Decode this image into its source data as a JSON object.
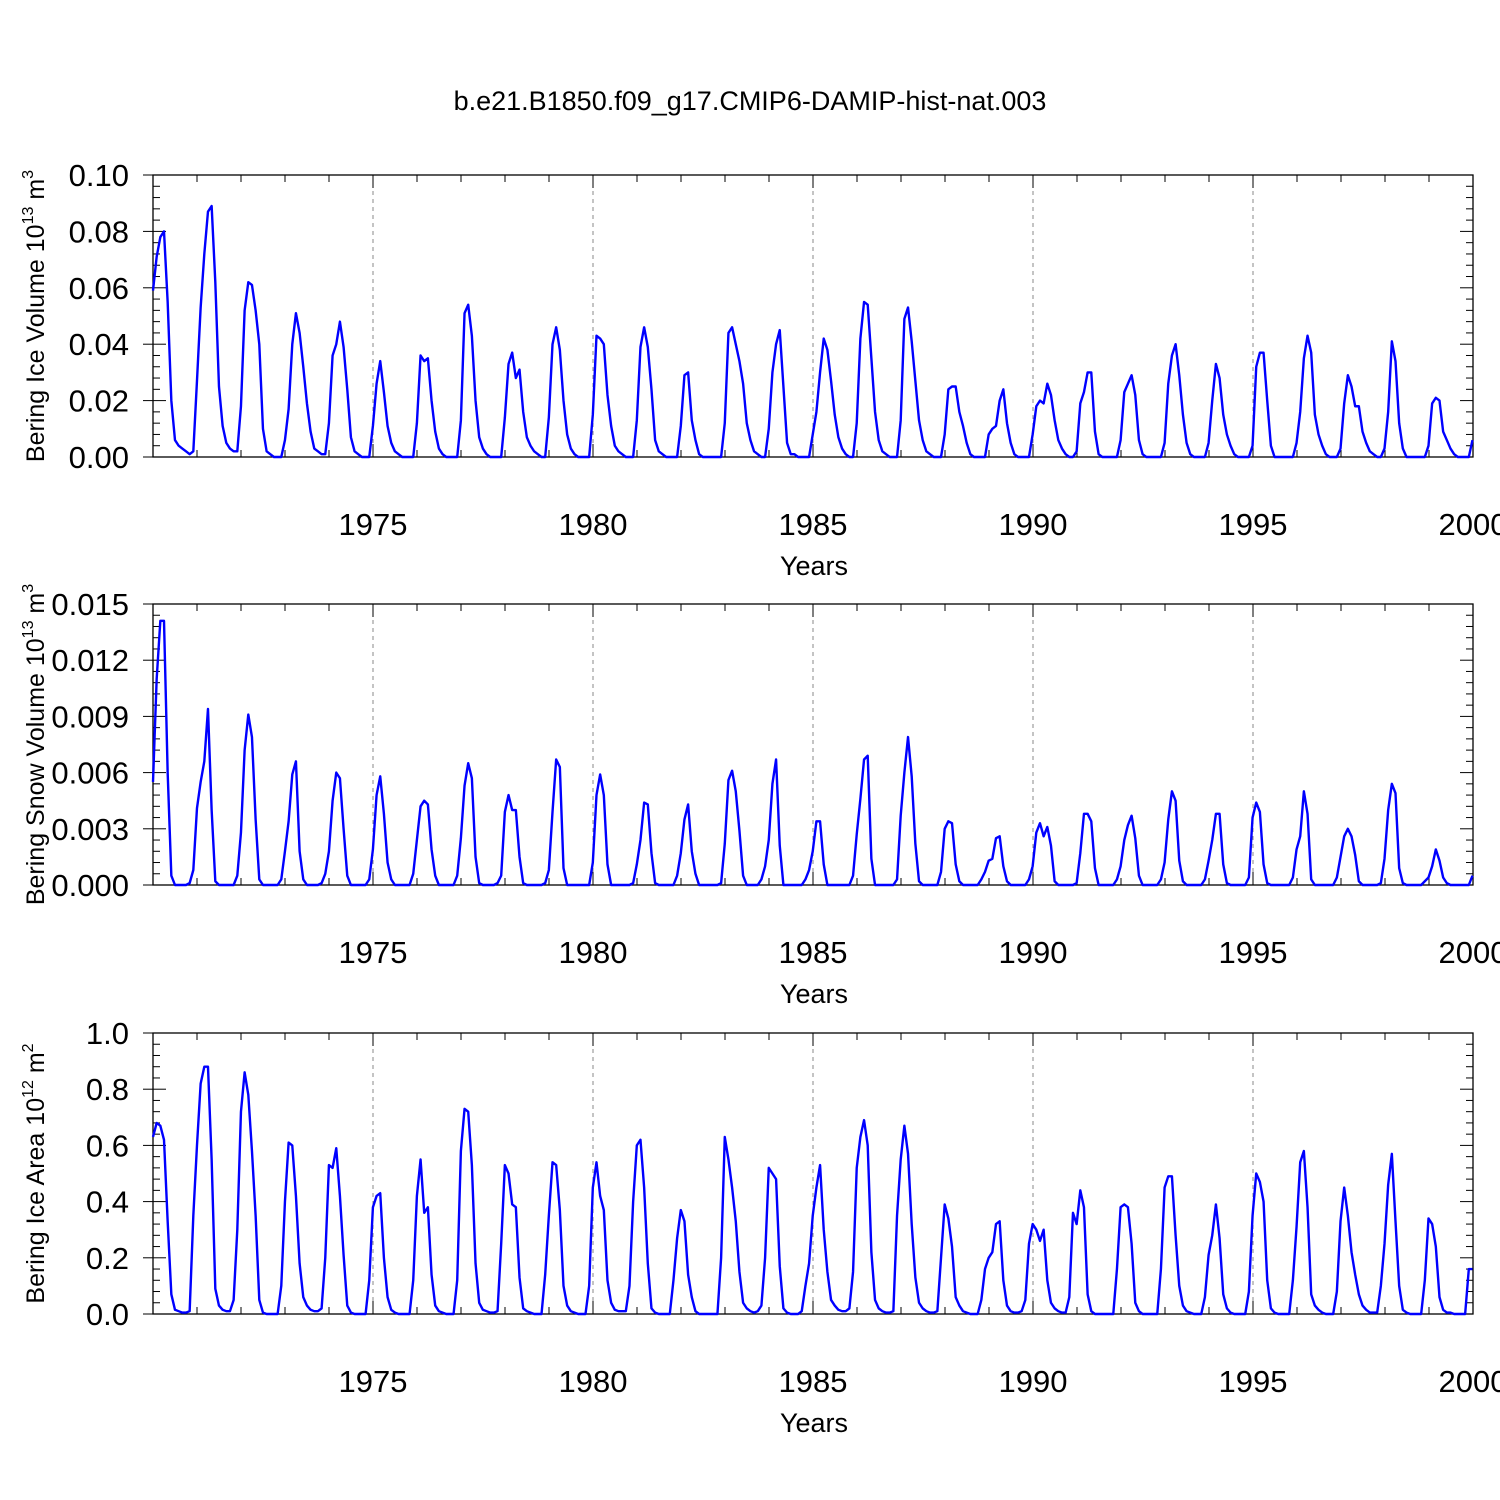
{
  "title": "b.e21.B1850.f09_g17.CMIP6-DAMIP-hist-nat.003",
  "colors": {
    "line": "#0000ff",
    "axis": "#000000",
    "grid": "#888888",
    "background": "#ffffff"
  },
  "chart_data": [
    {
      "type": "line",
      "name": "ice-volume",
      "ylabel": {
        "main": "Bering Ice Volume 10",
        "sup": "13",
        "unit": " m",
        "unit_sup": "3"
      },
      "xlabel": "Years",
      "xlim": [
        1970.0,
        2000.0
      ],
      "ylim": [
        0.0,
        0.1
      ],
      "xticks": [
        1975,
        1980,
        1985,
        1990,
        1995,
        2000
      ],
      "xtick_labels": [
        "1975",
        "1980",
        "1985",
        "1990",
        "1995",
        "2000"
      ],
      "yticks": [
        0.0,
        0.02,
        0.04,
        0.06,
        0.08,
        0.1
      ],
      "ytick_labels": [
        "0.00",
        "0.02",
        "0.04",
        "0.06",
        "0.08",
        "0.10"
      ],
      "x_start": 1970.0,
      "x_step": 0.0833,
      "values": [
        0.059,
        0.071,
        0.078,
        0.08,
        0.055,
        0.02,
        0.006,
        0.004,
        0.003,
        0.002,
        0.001,
        0.002,
        0.027,
        0.053,
        0.072,
        0.087,
        0.089,
        0.062,
        0.025,
        0.011,
        0.005,
        0.003,
        0.002,
        0.002,
        0.018,
        0.052,
        0.062,
        0.061,
        0.052,
        0.04,
        0.01,
        0.002,
        0.001,
        0.0,
        0.0,
        0.0,
        0.006,
        0.017,
        0.04,
        0.051,
        0.044,
        0.032,
        0.019,
        0.009,
        0.003,
        0.002,
        0.001,
        0.001,
        0.012,
        0.036,
        0.04,
        0.048,
        0.039,
        0.024,
        0.007,
        0.002,
        0.001,
        0.0,
        0.0,
        0.0,
        0.011,
        0.026,
        0.034,
        0.023,
        0.011,
        0.005,
        0.002,
        0.001,
        0.0,
        0.0,
        0.0,
        0.0,
        0.012,
        0.036,
        0.034,
        0.035,
        0.02,
        0.009,
        0.003,
        0.001,
        0.0,
        0.0,
        0.0,
        0.0,
        0.013,
        0.051,
        0.054,
        0.043,
        0.02,
        0.007,
        0.003,
        0.001,
        0.0,
        0.0,
        0.0,
        0.0,
        0.014,
        0.033,
        0.037,
        0.028,
        0.031,
        0.016,
        0.007,
        0.004,
        0.002,
        0.001,
        0.0,
        0.0,
        0.014,
        0.04,
        0.046,
        0.038,
        0.02,
        0.008,
        0.003,
        0.001,
        0.0,
        0.0,
        0.0,
        0.0,
        0.015,
        0.043,
        0.042,
        0.04,
        0.022,
        0.011,
        0.004,
        0.002,
        0.001,
        0.0,
        0.0,
        0.0,
        0.013,
        0.039,
        0.046,
        0.039,
        0.024,
        0.006,
        0.002,
        0.001,
        0.0,
        0.0,
        0.0,
        0.0,
        0.011,
        0.029,
        0.03,
        0.013,
        0.006,
        0.001,
        0.0,
        0.0,
        0.0,
        0.0,
        0.0,
        0.0,
        0.012,
        0.044,
        0.046,
        0.04,
        0.034,
        0.026,
        0.012,
        0.006,
        0.002,
        0.001,
        0.0,
        0.0,
        0.01,
        0.03,
        0.04,
        0.045,
        0.025,
        0.005,
        0.001,
        0.001,
        0.0,
        0.0,
        0.0,
        0.0,
        0.008,
        0.016,
        0.03,
        0.042,
        0.038,
        0.027,
        0.015,
        0.007,
        0.003,
        0.001,
        0.0,
        0.0,
        0.012,
        0.042,
        0.055,
        0.054,
        0.035,
        0.016,
        0.006,
        0.002,
        0.001,
        0.0,
        0.0,
        0.0,
        0.013,
        0.049,
        0.053,
        0.041,
        0.027,
        0.013,
        0.006,
        0.002,
        0.001,
        0.0,
        0.0,
        0.0,
        0.008,
        0.024,
        0.025,
        0.025,
        0.016,
        0.011,
        0.005,
        0.001,
        0.0,
        0.0,
        0.0,
        0.0,
        0.008,
        0.01,
        0.011,
        0.02,
        0.024,
        0.012,
        0.005,
        0.001,
        0.0,
        0.0,
        0.0,
        0.0,
        0.008,
        0.018,
        0.02,
        0.019,
        0.026,
        0.022,
        0.013,
        0.006,
        0.003,
        0.001,
        0.0,
        0.0,
        0.002,
        0.019,
        0.023,
        0.03,
        0.03,
        0.009,
        0.001,
        0.0,
        0.0,
        0.0,
        0.0,
        0.0,
        0.006,
        0.023,
        0.026,
        0.029,
        0.022,
        0.006,
        0.001,
        0.0,
        0.0,
        0.0,
        0.0,
        0.0,
        0.005,
        0.026,
        0.036,
        0.04,
        0.029,
        0.015,
        0.005,
        0.001,
        0.0,
        0.0,
        0.0,
        0.0,
        0.005,
        0.02,
        0.033,
        0.028,
        0.015,
        0.008,
        0.004,
        0.001,
        0.0,
        0.0,
        0.0,
        0.0,
        0.004,
        0.032,
        0.037,
        0.037,
        0.02,
        0.004,
        0.0,
        0.0,
        0.0,
        0.0,
        0.0,
        0.0,
        0.005,
        0.016,
        0.035,
        0.043,
        0.037,
        0.015,
        0.008,
        0.004,
        0.001,
        0.0,
        0.0,
        0.0,
        0.003,
        0.019,
        0.029,
        0.025,
        0.018,
        0.018,
        0.009,
        0.005,
        0.002,
        0.001,
        0.0,
        0.0,
        0.003,
        0.016,
        0.041,
        0.034,
        0.012,
        0.003,
        0.0,
        0.0,
        0.0,
        0.0,
        0.0,
        0.0,
        0.004,
        0.019,
        0.021,
        0.02,
        0.009,
        0.006,
        0.003,
        0.001,
        0.0,
        0.0,
        0.0,
        0.0,
        0.006
      ]
    },
    {
      "type": "line",
      "name": "snow-volume",
      "ylabel": {
        "main": "Bering Snow Volume 10",
        "sup": "13",
        "unit": " m",
        "unit_sup": "3"
      },
      "xlabel": "Years",
      "xlim": [
        1970.0,
        2000.0
      ],
      "ylim": [
        0.0,
        0.015
      ],
      "xticks": [
        1975,
        1980,
        1985,
        1990,
        1995,
        2000
      ],
      "xtick_labels": [
        "1975",
        "1980",
        "1985",
        "1990",
        "1995",
        "2000"
      ],
      "yticks": [
        0.0,
        0.003,
        0.006,
        0.009,
        0.012,
        0.015
      ],
      "ytick_labels": [
        "0.000",
        "0.003",
        "0.006",
        "0.009",
        "0.012",
        "0.015"
      ],
      "x_start": 1970.0,
      "x_step": 0.0833,
      "values": [
        0.0055,
        0.011,
        0.0141,
        0.0141,
        0.006,
        0.0005,
        0.0,
        0.0,
        0.0,
        0.0,
        0.0001,
        0.0008,
        0.0041,
        0.0055,
        0.0066,
        0.0094,
        0.004,
        0.0002,
        0.0,
        0.0,
        0.0,
        0.0,
        0.0,
        0.0005,
        0.0028,
        0.0072,
        0.0091,
        0.0079,
        0.0035,
        0.0003,
        0.0,
        0.0,
        0.0,
        0.0,
        0.0,
        0.0003,
        0.0018,
        0.0034,
        0.0059,
        0.0066,
        0.0018,
        0.0003,
        0.0,
        0.0,
        0.0,
        0.0,
        0.0001,
        0.0006,
        0.0018,
        0.0045,
        0.006,
        0.0057,
        0.003,
        0.0005,
        0.0,
        0.0,
        0.0,
        0.0,
        0.0,
        0.0003,
        0.0019,
        0.0048,
        0.0058,
        0.0038,
        0.0012,
        0.0003,
        0.0,
        0.0,
        0.0,
        0.0,
        0.0,
        0.0006,
        0.0024,
        0.0042,
        0.0045,
        0.0043,
        0.0019,
        0.0005,
        0.0,
        0.0,
        0.0,
        0.0,
        0.0,
        0.0005,
        0.0025,
        0.0053,
        0.0065,
        0.0057,
        0.0015,
        0.0001,
        0.0,
        0.0,
        0.0,
        0.0,
        0.0001,
        0.0005,
        0.0039,
        0.0048,
        0.004,
        0.004,
        0.0015,
        0.0001,
        0.0,
        0.0,
        0.0,
        0.0,
        0.0,
        0.0001,
        0.0008,
        0.0039,
        0.0067,
        0.0063,
        0.0009,
        0.0,
        0.0,
        0.0,
        0.0,
        0.0,
        0.0,
        0.0,
        0.0012,
        0.0048,
        0.0059,
        0.0048,
        0.0011,
        0.0,
        0.0,
        0.0,
        0.0,
        0.0,
        0.0,
        0.0001,
        0.0011,
        0.0024,
        0.0044,
        0.0043,
        0.0017,
        0.0001,
        0.0,
        0.0,
        0.0,
        0.0,
        0.0,
        0.0005,
        0.0017,
        0.0035,
        0.0043,
        0.0018,
        0.0006,
        0.0,
        0.0,
        0.0,
        0.0,
        0.0,
        0.0,
        0.0001,
        0.0022,
        0.0056,
        0.0061,
        0.005,
        0.0029,
        0.0005,
        0.0,
        0.0,
        0.0,
        0.0,
        0.0003,
        0.001,
        0.0024,
        0.0054,
        0.0067,
        0.0021,
        0.0,
        0.0,
        0.0,
        0.0,
        0.0,
        0.0,
        0.0003,
        0.0008,
        0.0018,
        0.0034,
        0.0034,
        0.0011,
        0.0,
        0.0,
        0.0,
        0.0,
        0.0,
        0.0,
        0.0,
        0.0005,
        0.0027,
        0.0046,
        0.0067,
        0.0069,
        0.0014,
        0.0,
        0.0,
        0.0,
        0.0,
        0.0,
        0.0,
        0.0003,
        0.0037,
        0.006,
        0.0079,
        0.0058,
        0.0022,
        0.0002,
        0.0,
        0.0,
        0.0,
        0.0,
        0.0,
        0.0007,
        0.003,
        0.0034,
        0.0033,
        0.0011,
        0.0002,
        0.0,
        0.0,
        0.0,
        0.0,
        0.0,
        0.0003,
        0.0007,
        0.0013,
        0.0014,
        0.0025,
        0.0026,
        0.001,
        0.0002,
        0.0,
        0.0,
        0.0,
        0.0,
        0.0,
        0.0003,
        0.001,
        0.0028,
        0.0033,
        0.0026,
        0.0031,
        0.0021,
        0.0002,
        0.0,
        0.0,
        0.0,
        0.0,
        0.0,
        0.0001,
        0.0017,
        0.0038,
        0.0038,
        0.0034,
        0.0009,
        0.0,
        0.0,
        0.0,
        0.0,
        0.0,
        0.0003,
        0.001,
        0.0024,
        0.0032,
        0.0037,
        0.0025,
        0.0005,
        0.0,
        0.0,
        0.0,
        0.0,
        0.0,
        0.0003,
        0.0012,
        0.0035,
        0.005,
        0.0045,
        0.0013,
        0.0002,
        0.0,
        0.0,
        0.0,
        0.0,
        0.0,
        0.0003,
        0.0013,
        0.0024,
        0.0038,
        0.0038,
        0.0011,
        0.0001,
        0.0,
        0.0,
        0.0,
        0.0,
        0.0,
        0.0004,
        0.0036,
        0.0044,
        0.0039,
        0.0011,
        0.0001,
        0.0,
        0.0,
        0.0,
        0.0,
        0.0,
        0.0,
        0.0004,
        0.0019,
        0.0026,
        0.005,
        0.0038,
        0.0003,
        0.0,
        0.0,
        0.0,
        0.0,
        0.0,
        0.0,
        0.0004,
        0.0015,
        0.0026,
        0.003,
        0.0026,
        0.0016,
        0.0002,
        0.0,
        0.0,
        0.0,
        0.0,
        0.0,
        0.0001,
        0.0014,
        0.004,
        0.0054,
        0.0049,
        0.0009,
        0.0001,
        0.0,
        0.0,
        0.0,
        0.0,
        0.0,
        0.0002,
        0.0004,
        0.001,
        0.0019,
        0.0013,
        0.0004,
        0.0001,
        0.0,
        0.0,
        0.0,
        0.0,
        0.0,
        0.0,
        0.0005
      ]
    },
    {
      "type": "line",
      "name": "ice-area",
      "ylabel": {
        "main": "Bering Ice Area 10",
        "sup": "12",
        "unit": " m",
        "unit_sup": "2"
      },
      "xlabel": "Years",
      "xlim": [
        1970.0,
        2000.0
      ],
      "ylim": [
        0.0,
        1.0
      ],
      "xticks": [
        1975,
        1980,
        1985,
        1990,
        1995,
        2000
      ],
      "xtick_labels": [
        "1975",
        "1980",
        "1985",
        "1990",
        "1995",
        "2000"
      ],
      "yticks": [
        0.0,
        0.2,
        0.4,
        0.6,
        0.8,
        1.0
      ],
      "ytick_labels": [
        "0.0",
        "0.2",
        "0.4",
        "0.6",
        "0.8",
        "1.0"
      ],
      "x_start": 1970.0,
      "x_step": 0.0833,
      "values": [
        0.63,
        0.68,
        0.67,
        0.62,
        0.33,
        0.07,
        0.015,
        0.01,
        0.005,
        0.005,
        0.01,
        0.35,
        0.6,
        0.82,
        0.88,
        0.88,
        0.55,
        0.09,
        0.03,
        0.015,
        0.01,
        0.01,
        0.05,
        0.3,
        0.72,
        0.86,
        0.78,
        0.58,
        0.35,
        0.05,
        0.005,
        0.0,
        0.0,
        0.0,
        0.0,
        0.1,
        0.4,
        0.61,
        0.6,
        0.42,
        0.18,
        0.06,
        0.03,
        0.015,
        0.01,
        0.01,
        0.02,
        0.2,
        0.53,
        0.52,
        0.59,
        0.42,
        0.21,
        0.03,
        0.005,
        0.0,
        0.0,
        0.0,
        0.0,
        0.12,
        0.38,
        0.42,
        0.43,
        0.2,
        0.06,
        0.015,
        0.005,
        0.0,
        0.0,
        0.0,
        0.0,
        0.12,
        0.42,
        0.55,
        0.36,
        0.38,
        0.14,
        0.03,
        0.01,
        0.005,
        0.0,
        0.0,
        0.0,
        0.12,
        0.58,
        0.73,
        0.72,
        0.53,
        0.18,
        0.04,
        0.015,
        0.01,
        0.005,
        0.005,
        0.01,
        0.25,
        0.53,
        0.5,
        0.39,
        0.38,
        0.13,
        0.02,
        0.01,
        0.005,
        0.0,
        0.0,
        0.0,
        0.14,
        0.35,
        0.54,
        0.53,
        0.37,
        0.1,
        0.03,
        0.01,
        0.005,
        0.0,
        0.0,
        0.0,
        0.1,
        0.45,
        0.54,
        0.42,
        0.37,
        0.12,
        0.04,
        0.015,
        0.01,
        0.01,
        0.01,
        0.1,
        0.4,
        0.6,
        0.62,
        0.45,
        0.18,
        0.02,
        0.005,
        0.0,
        0.0,
        0.0,
        0.0,
        0.12,
        0.27,
        0.37,
        0.33,
        0.14,
        0.06,
        0.01,
        0.0,
        0.0,
        0.0,
        0.0,
        0.0,
        0.0,
        0.2,
        0.63,
        0.55,
        0.45,
        0.33,
        0.15,
        0.04,
        0.02,
        0.01,
        0.005,
        0.01,
        0.03,
        0.2,
        0.52,
        0.5,
        0.48,
        0.17,
        0.02,
        0.005,
        0.0,
        0.0,
        0.0,
        0.01,
        0.1,
        0.18,
        0.35,
        0.45,
        0.53,
        0.3,
        0.15,
        0.05,
        0.03,
        0.015,
        0.01,
        0.01,
        0.02,
        0.15,
        0.52,
        0.63,
        0.69,
        0.6,
        0.22,
        0.05,
        0.02,
        0.01,
        0.005,
        0.005,
        0.01,
        0.35,
        0.55,
        0.67,
        0.57,
        0.32,
        0.13,
        0.04,
        0.02,
        0.01,
        0.005,
        0.005,
        0.01,
        0.2,
        0.39,
        0.34,
        0.24,
        0.06,
        0.03,
        0.01,
        0.005,
        0.0,
        0.0,
        0.0,
        0.05,
        0.16,
        0.2,
        0.22,
        0.32,
        0.33,
        0.12,
        0.03,
        0.01,
        0.005,
        0.005,
        0.01,
        0.05,
        0.25,
        0.32,
        0.3,
        0.26,
        0.3,
        0.12,
        0.04,
        0.02,
        0.01,
        0.005,
        0.005,
        0.06,
        0.36,
        0.32,
        0.44,
        0.38,
        0.07,
        0.01,
        0.0,
        0.0,
        0.0,
        0.0,
        0.0,
        0.0,
        0.16,
        0.38,
        0.39,
        0.38,
        0.25,
        0.04,
        0.01,
        0.0,
        0.0,
        0.0,
        0.0,
        0.0,
        0.16,
        0.45,
        0.49,
        0.49,
        0.28,
        0.1,
        0.03,
        0.01,
        0.005,
        0.0,
        0.0,
        0.0,
        0.06,
        0.21,
        0.28,
        0.39,
        0.27,
        0.07,
        0.02,
        0.005,
        0.0,
        0.0,
        0.0,
        0.0,
        0.08,
        0.35,
        0.5,
        0.47,
        0.4,
        0.12,
        0.02,
        0.005,
        0.0,
        0.0,
        0.0,
        0.0,
        0.12,
        0.31,
        0.54,
        0.58,
        0.38,
        0.07,
        0.03,
        0.015,
        0.005,
        0.0,
        0.0,
        0.0,
        0.08,
        0.33,
        0.45,
        0.35,
        0.22,
        0.14,
        0.07,
        0.03,
        0.015,
        0.005,
        0.005,
        0.005,
        0.1,
        0.25,
        0.46,
        0.57,
        0.33,
        0.1,
        0.015,
        0.005,
        0.0,
        0.0,
        0.0,
        0.0,
        0.12,
        0.34,
        0.32,
        0.24,
        0.06,
        0.015,
        0.005,
        0.005,
        0.0,
        0.0,
        0.0,
        0.0,
        0.16,
        0.16
      ]
    }
  ]
}
